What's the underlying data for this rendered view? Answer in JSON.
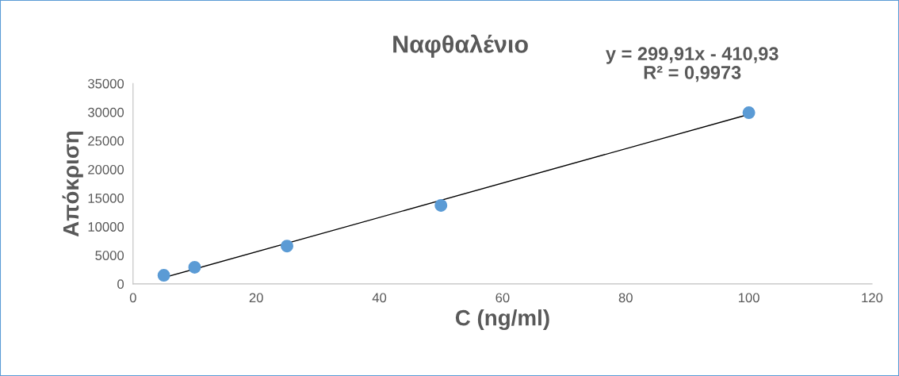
{
  "chart_data": {
    "type": "scatter",
    "title": "Ναφθαλένιο",
    "xlabel": "C (ng/ml)",
    "ylabel": "Απόκριση",
    "annotations": [
      "y = 299,91x - 410,93\nR² = 0,9973"
    ],
    "series": [
      {
        "color": "#5b9bd5",
        "marker": "circle",
        "x": [
          5,
          10,
          25,
          50,
          100
        ],
        "values": [
          1500,
          2900,
          6600,
          13700,
          29900
        ]
      },
      {
        "type": "line",
        "color": "#000000",
        "marker": "none",
        "x": [
          5,
          100
        ],
        "values": [
          1100,
          29600
        ]
      }
    ],
    "xlim": [
      0,
      120
    ],
    "xticks": [
      0,
      20,
      40,
      60,
      80,
      100,
      120
    ],
    "ylim": [
      0,
      35000
    ],
    "yticks": [
      0,
      5000,
      10000,
      15000,
      20000,
      25000,
      30000,
      35000
    ],
    "grid": false,
    "legend": false
  }
}
